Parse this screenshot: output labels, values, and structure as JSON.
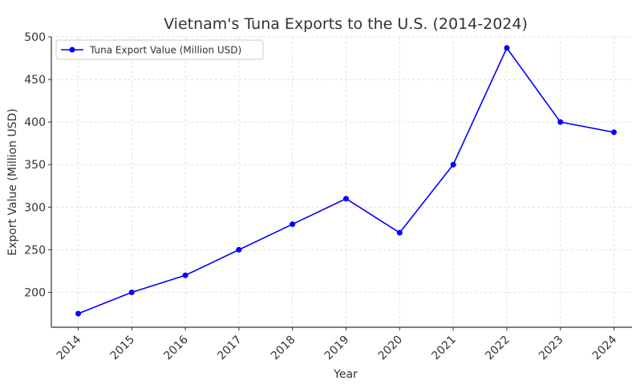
{
  "chart_data": {
    "type": "line",
    "title": "Vietnam's Tuna Exports to the U.S. (2014-2024)",
    "xlabel": "Year",
    "ylabel": "Export Value (Million USD)",
    "x": [
      "2014",
      "2015",
      "2016",
      "2017",
      "2018",
      "2019",
      "2020",
      "2021",
      "2022",
      "2023",
      "2024"
    ],
    "series": [
      {
        "name": "Tuna Export Value (Million USD)",
        "values": [
          175,
          200,
          220,
          250,
          280,
          310,
          270,
          350,
          487,
          400,
          388
        ],
        "color": "#0000ff",
        "marker": "circle"
      }
    ],
    "ylim": [
      159,
      500
    ],
    "yticks": [
      200,
      250,
      300,
      350,
      400,
      450,
      500
    ],
    "grid": true,
    "legend_position": "top-left",
    "x_tick_rotation": -45
  }
}
